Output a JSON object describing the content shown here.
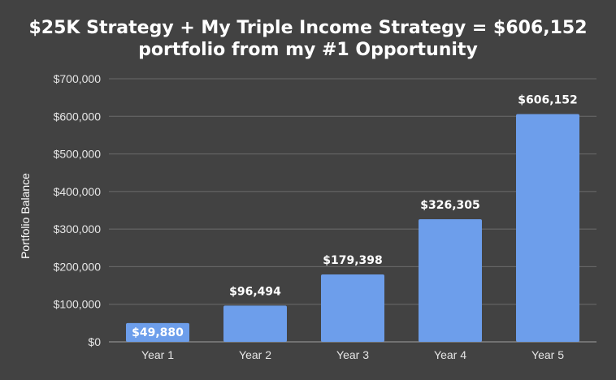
{
  "chart_data": {
    "type": "bar",
    "title_lines": [
      "$25K Strategy + My Triple Income Strategy = $606,152",
      "portfolio from my #1 Opportunity"
    ],
    "xlabel": "",
    "ylabel": "Portfolio Balance",
    "categories": [
      "Year 1",
      "Year 2",
      "Year 3",
      "Year 4",
      "Year 5"
    ],
    "values": [
      49880,
      96494,
      179398,
      326305,
      606152
    ],
    "value_labels": [
      "$49,880",
      "$96,494",
      "$179,398",
      "$326,305",
      "$606,152"
    ],
    "ylim": [
      0,
      700000
    ],
    "yticks": [
      0,
      100000,
      200000,
      300000,
      400000,
      500000,
      600000,
      700000
    ],
    "ytick_labels": [
      "$0",
      "$100,000",
      "$200,000",
      "$300,000",
      "$400,000",
      "$500,000",
      "$600,000",
      "$700,000"
    ],
    "grid": true,
    "legend": "none",
    "colors": {
      "background": "#424242",
      "bar": "#6d9eeb",
      "grid": "#6b6b6b",
      "text": "#ffffff"
    }
  }
}
